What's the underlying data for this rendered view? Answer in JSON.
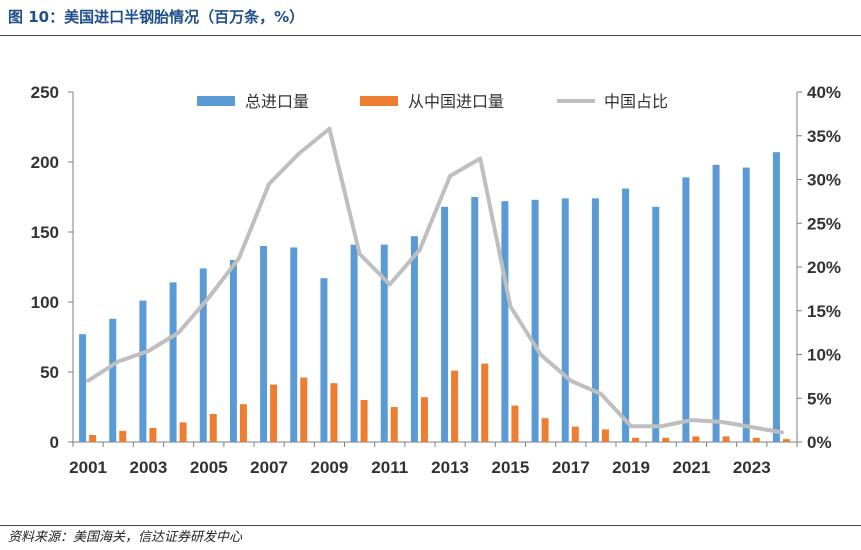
{
  "figure": {
    "title": "图 10：美国进口半钢胎情况（百万条，%）",
    "source": "资料来源：美国海关，信达证券研发中心"
  },
  "colors": {
    "total": "#5b9bd5",
    "china": "#ed7d31",
    "share": "#bfbfbf",
    "title": "#1f4e8c"
  },
  "chart_data": {
    "type": "bar",
    "title": "",
    "xlabel": "",
    "ylabel": "",
    "x": [
      2001,
      2002,
      2003,
      2004,
      2005,
      2006,
      2007,
      2008,
      2009,
      2010,
      2011,
      2012,
      2013,
      2014,
      2015,
      2016,
      2017,
      2018,
      2019,
      2020,
      2021,
      2022,
      2023,
      2024
    ],
    "x_tick_labels": [
      "2001",
      "2003",
      "2005",
      "2007",
      "2009",
      "2011",
      "2013",
      "2015",
      "2017",
      "2019",
      "2021",
      "2023"
    ],
    "ylim": [
      0,
      250
    ],
    "y_ticks": [
      0,
      50,
      100,
      150,
      200,
      250
    ],
    "y2lim": [
      0,
      0.4
    ],
    "y2_ticks": [
      "0%",
      "5%",
      "10%",
      "15%",
      "20%",
      "25%",
      "30%",
      "35%",
      "40%"
    ],
    "legend_position": "top",
    "grid": false,
    "series": [
      {
        "name": "总进口量",
        "kind": "bar",
        "axis": "left",
        "values": [
          77,
          88,
          101,
          114,
          124,
          130,
          140,
          139,
          117,
          141,
          141,
          147,
          168,
          175,
          172,
          173,
          174,
          174,
          181,
          168,
          189,
          198,
          196,
          207
        ]
      },
      {
        "name": "从中国进口量",
        "kind": "bar",
        "axis": "left",
        "values": [
          5,
          8,
          10,
          14,
          20,
          27,
          41,
          46,
          42,
          30,
          25,
          32,
          51,
          56,
          26,
          17,
          11,
          9,
          3,
          3,
          4,
          4,
          3,
          2
        ]
      },
      {
        "name": "中国占比",
        "kind": "line",
        "axis": "right",
        "values": [
          0.07,
          0.092,
          0.104,
          0.125,
          0.165,
          0.21,
          0.295,
          0.33,
          0.358,
          0.215,
          0.18,
          0.22,
          0.304,
          0.324,
          0.155,
          0.1,
          0.07,
          0.055,
          0.018,
          0.018,
          0.025,
          0.023,
          0.017,
          0.011
        ]
      }
    ]
  }
}
